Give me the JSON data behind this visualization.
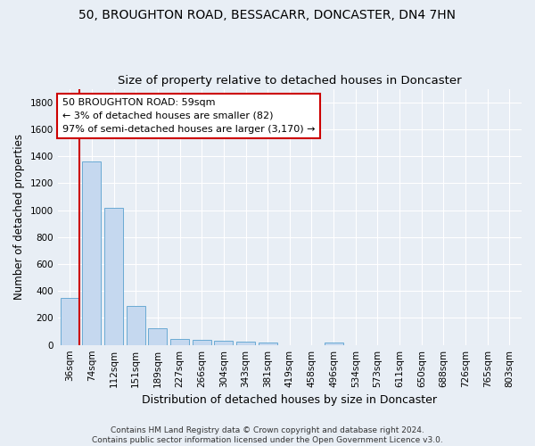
{
  "title1": "50, BROUGHTON ROAD, BESSACARR, DONCASTER, DN4 7HN",
  "title2": "Size of property relative to detached houses in Doncaster",
  "xlabel": "Distribution of detached houses by size in Doncaster",
  "ylabel": "Number of detached properties",
  "categories": [
    "36sqm",
    "74sqm",
    "112sqm",
    "151sqm",
    "189sqm",
    "227sqm",
    "266sqm",
    "304sqm",
    "343sqm",
    "381sqm",
    "419sqm",
    "458sqm",
    "496sqm",
    "534sqm",
    "573sqm",
    "611sqm",
    "650sqm",
    "688sqm",
    "726sqm",
    "765sqm",
    "803sqm"
  ],
  "values": [
    350,
    1360,
    1020,
    290,
    125,
    42,
    35,
    30,
    22,
    18,
    0,
    0,
    20,
    0,
    0,
    0,
    0,
    0,
    0,
    0,
    0
  ],
  "bar_color": "#c5d8ef",
  "bar_edge_color": "#6aaad4",
  "highlight_color": "#cc0000",
  "annotation_text": "50 BROUGHTON ROAD: 59sqm\n← 3% of detached houses are smaller (82)\n97% of semi-detached houses are larger (3,170) →",
  "annotation_box_color": "#ffffff",
  "annotation_box_edge": "#cc0000",
  "ylim": [
    0,
    1900
  ],
  "yticks": [
    0,
    200,
    400,
    600,
    800,
    1000,
    1200,
    1400,
    1600,
    1800
  ],
  "footnote": "Contains HM Land Registry data © Crown copyright and database right 2024.\nContains public sector information licensed under the Open Government Licence v3.0.",
  "bg_color": "#e8eef5",
  "grid_color": "#ffffff",
  "title1_fontsize": 10,
  "title2_fontsize": 9.5,
  "xlabel_fontsize": 9,
  "ylabel_fontsize": 8.5,
  "tick_fontsize": 7.5,
  "annotation_fontsize": 8,
  "footnote_fontsize": 6.5
}
